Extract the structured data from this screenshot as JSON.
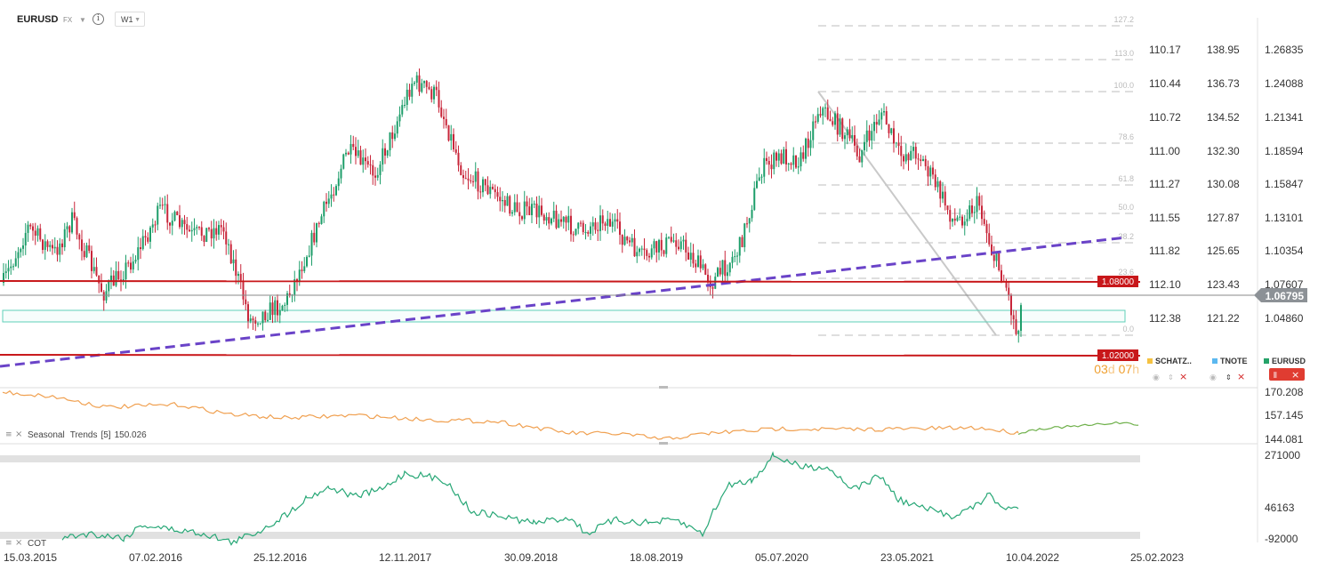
{
  "header": {
    "symbol": "EURUSD",
    "market": "FX",
    "timeframe": "W1"
  },
  "price_axis": {
    "eurusd_ticks": [
      "1.26835",
      "1.24088",
      "1.21341",
      "1.18594",
      "1.15847",
      "1.13101",
      "1.10354",
      "1.07607",
      "1.04860"
    ],
    "tnote_ticks": [
      "138.95",
      "136.73",
      "134.52",
      "132.30",
      "130.08",
      "127.87",
      "125.65",
      "123.43",
      "121.22"
    ],
    "schatz_ticks": [
      "110.17",
      "110.44",
      "110.72",
      "111.00",
      "111.27",
      "111.55",
      "111.82",
      "112.10",
      "112.38"
    ],
    "current_price": "1.06795",
    "level_upper": "1.08000",
    "level_lower": "1.02000",
    "countdown_days": "03",
    "countdown_days_unit": "d",
    "countdown_hours": "07",
    "countdown_hours_unit": "h"
  },
  "fibonacci": {
    "levels": [
      "127.2",
      "113.0",
      "100.0",
      "78.6",
      "61.8",
      "50.0",
      "38.2",
      "23.6",
      "0.0"
    ]
  },
  "legend": {
    "schatz": "SCHATZ..",
    "tnote": "TNOTE",
    "eurusd": "EURUSD",
    "colors": {
      "schatz": "#f5c242",
      "tnote": "#5bb8f0",
      "eurusd": "#26a269"
    }
  },
  "indicators": {
    "seasonal": {
      "label": "Seasonal",
      "name": "Trends",
      "param": "[5]",
      "value": "150.026",
      "ticks": [
        "170.208",
        "157.145",
        "144.081"
      ]
    },
    "cot": {
      "label": "COT",
      "ticks": [
        "271000",
        "46163",
        "-92000"
      ]
    }
  },
  "time_axis": {
    "labels": [
      "15.03.2015",
      "07.02.2016",
      "25.12.2016",
      "12.11.2017",
      "30.09.2018",
      "18.08.2019",
      "05.07.2020",
      "23.05.2021",
      "10.04.2022",
      "25.02.2023"
    ]
  },
  "chart_data": {
    "type": "candlestick",
    "symbol": "EURUSD",
    "timeframe": "W1",
    "ylim": [
      1.0215,
      1.2765
    ],
    "horizontal_levels": [
      1.08,
      1.02
    ],
    "current_price": 1.06795,
    "x_range": [
      "15.03.2015",
      "25.02.2023"
    ],
    "series": [
      {
        "name": "EURUSD",
        "x": [
          "15.03.2015",
          "07.02.2016",
          "25.12.2016",
          "12.11.2017",
          "30.09.2018",
          "18.08.2019",
          "05.07.2020",
          "23.05.2021",
          "10.04.2022"
        ],
        "values": [
          1.085,
          1.13,
          1.05,
          1.18,
          1.155,
          1.11,
          1.155,
          1.215,
          1.068
        ]
      },
      {
        "name": "Seasonal Trends [5]",
        "values": [
          165,
          160,
          155,
          156,
          151,
          147,
          150,
          152,
          150
        ]
      },
      {
        "name": "COT",
        "values": [
          -60000,
          -80000,
          -20000,
          140000,
          10000,
          -60000,
          271000,
          110000,
          40000
        ]
      }
    ]
  }
}
